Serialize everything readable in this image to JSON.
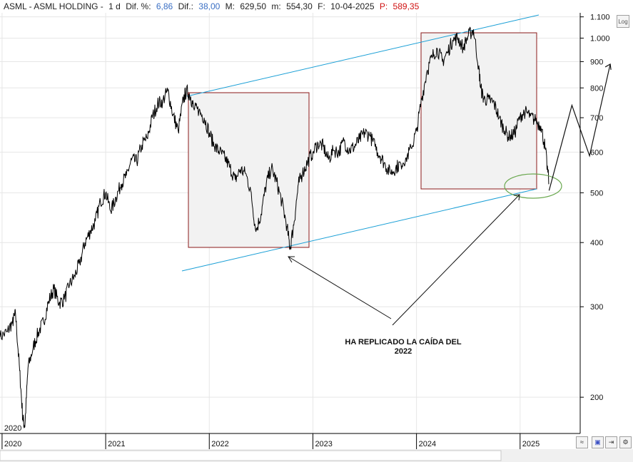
{
  "header": {
    "symbol": "ASML - ASML HOLDING -",
    "period": "1 d",
    "dif_pct_label": "Dif. %:",
    "dif_pct_value": "6,86",
    "dif_label": "Dif.:",
    "dif_value": "38,00",
    "max_label": "M:",
    "max_value": "629,50",
    "min_label": "m:",
    "min_value": "554,30",
    "date_label": "F:",
    "date_value": "10-04-2025",
    "price_label": "P:",
    "price_value": "589,35"
  },
  "controls": {
    "log_label": "Log"
  },
  "annotation": {
    "line1": "HA REPLICADO LA CAÍDA DEL",
    "line2": "2022"
  },
  "colors": {
    "trendline": "#1a9fd6",
    "box_border": "#8b1a1a",
    "box_fill": "#f2f2f2",
    "ellipse": "#6aa84f",
    "price": "#000000",
    "header_value": "#3a6fc4",
    "price_value": "#d01010"
  },
  "chart_data": {
    "type": "line",
    "title": "ASML - ASML HOLDING - 1 d",
    "y_scale": "log",
    "ylim": [
      170,
      1120
    ],
    "y_ticks": [
      200,
      300,
      400,
      500,
      600,
      700,
      800,
      900,
      1000,
      1100
    ],
    "y_tick_labels": [
      "200",
      "300",
      "400",
      "500",
      "600",
      "700",
      "800",
      "900",
      "1.000",
      "1.100"
    ],
    "x_tick_labels": [
      "2020",
      "2021",
      "2022",
      "2023",
      "2024",
      "2025"
    ],
    "x_ticks": [
      2020.0,
      2021.0,
      2022.0,
      2023.0,
      2024.0,
      2025.0
    ],
    "xlim": [
      2019.98,
      2025.58
    ],
    "series": [
      {
        "x": [
          2019.98,
          2020.05,
          2020.1,
          2020.13,
          2020.17,
          2020.2,
          2020.22,
          2020.25,
          2020.3,
          2020.35,
          2020.4,
          2020.45,
          2020.5,
          2020.55,
          2020.6,
          2020.65,
          2020.7,
          2020.75,
          2020.8,
          2020.85,
          2020.9,
          2020.95,
          2021.0,
          2021.05,
          2021.1,
          2021.15,
          2021.2,
          2021.25,
          2021.3,
          2021.35,
          2021.4,
          2021.45,
          2021.5,
          2021.55,
          2021.6,
          2021.65,
          2021.7,
          2021.75,
          2021.78,
          2021.82,
          2021.85,
          2021.9,
          2021.95,
          2022.0,
          2022.05,
          2022.1,
          2022.15,
          2022.2,
          2022.25,
          2022.3,
          2022.35,
          2022.4,
          2022.45,
          2022.5,
          2022.55,
          2022.6,
          2022.65,
          2022.7,
          2022.75,
          2022.78,
          2022.82,
          2022.86,
          2022.9,
          2022.95,
          2023.0,
          2023.05,
          2023.1,
          2023.15,
          2023.2,
          2023.25,
          2023.3,
          2023.35,
          2023.4,
          2023.45,
          2023.5,
          2023.55,
          2023.6,
          2023.65,
          2023.7,
          2023.75,
          2023.8,
          2023.85,
          2023.9,
          2023.95,
          2024.0,
          2024.05,
          2024.1,
          2024.15,
          2024.2,
          2024.25,
          2024.3,
          2024.35,
          2024.4,
          2024.45,
          2024.5,
          2024.55,
          2024.6,
          2024.62,
          2024.65,
          2024.7,
          2024.75,
          2024.8,
          2024.85,
          2024.9,
          2024.95,
          2025.0,
          2025.05,
          2025.1,
          2025.15,
          2025.2,
          2025.24,
          2025.28
        ],
        "y": [
          262,
          268,
          280,
          290,
          225,
          182,
          175,
          228,
          250,
          268,
          280,
          308,
          325,
          305,
          310,
          330,
          345,
          365,
          400,
          420,
          440,
          480,
          500,
          460,
          490,
          520,
          540,
          580,
          575,
          620,
          640,
          700,
          745,
          755,
          790,
          710,
          660,
          760,
          790,
          770,
          730,
          720,
          700,
          655,
          615,
          600,
          585,
          560,
          530,
          555,
          545,
          505,
          420,
          455,
          520,
          560,
          525,
          480,
          430,
          390,
          440,
          520,
          545,
          575,
          600,
          625,
          615,
          580,
          605,
          600,
          630,
          605,
          615,
          635,
          655,
          645,
          615,
          590,
          565,
          545,
          560,
          570,
          585,
          610,
          660,
          760,
          860,
          920,
          955,
          900,
          940,
          990,
          1000,
          960,
          1010,
          1040,
          880,
          800,
          760,
          760,
          745,
          700,
          660,
          640,
          655,
          705,
          720,
          705,
          690,
          675,
          615,
          520
        ]
      }
    ],
    "overlay_points": {
      "x": [
        2025.28,
        2025.5,
        2025.67,
        2025.87
      ],
      "y": [
        505,
        740,
        590,
        890
      ]
    }
  }
}
